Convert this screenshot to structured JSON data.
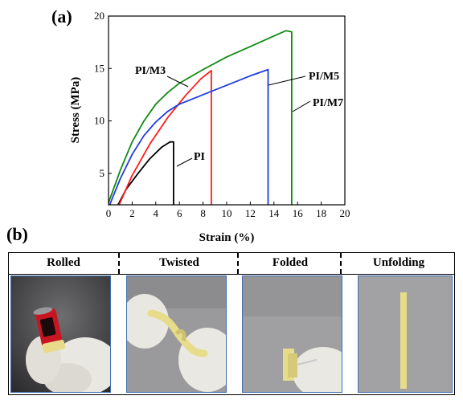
{
  "panel_a": "(a)",
  "panel_b": "(b)",
  "chart_data": {
    "type": "line",
    "title": "",
    "xlabel": "Strain (%)",
    "ylabel": "Stress (MPa)",
    "xlim": [
      0,
      20
    ],
    "ylim": [
      2,
      20
    ],
    "xticks": [
      0,
      2,
      4,
      6,
      8,
      10,
      12,
      14,
      16,
      18,
      20
    ],
    "yticks": [
      5,
      10,
      15,
      20
    ],
    "grid": false,
    "series": [
      {
        "name": "PI",
        "color": "#000000",
        "points": [
          [
            0.8,
            2.0
          ],
          [
            1.5,
            3.5
          ],
          [
            2.5,
            5.0
          ],
          [
            3.5,
            6.4
          ],
          [
            4.5,
            7.5
          ],
          [
            5.2,
            8.0
          ],
          [
            5.5,
            8.0
          ],
          [
            5.5,
            2.0
          ]
        ]
      },
      {
        "name": "PI/M3",
        "color": "#ff1a1a",
        "points": [
          [
            0.9,
            2.0
          ],
          [
            2.0,
            4.8
          ],
          [
            3.5,
            7.8
          ],
          [
            5.0,
            10.3
          ],
          [
            6.5,
            12.4
          ],
          [
            7.8,
            14.0
          ],
          [
            8.7,
            14.8
          ],
          [
            8.7,
            2.0
          ]
        ]
      },
      {
        "name": "PI/M5",
        "color": "#1f3de0",
        "points": [
          [
            0.1,
            2.0
          ],
          [
            1.0,
            4.5
          ],
          [
            2.0,
            6.8
          ],
          [
            3.0,
            8.6
          ],
          [
            4.0,
            9.9
          ],
          [
            5.0,
            10.9
          ],
          [
            6.0,
            11.6
          ],
          [
            8.0,
            12.5
          ],
          [
            10.0,
            13.4
          ],
          [
            12.0,
            14.3
          ],
          [
            13.5,
            14.9
          ],
          [
            13.5,
            2.0
          ]
        ]
      },
      {
        "name": "PI/M7",
        "color": "#128a12",
        "points": [
          [
            0.0,
            2.2
          ],
          [
            1.0,
            5.3
          ],
          [
            2.0,
            8.0
          ],
          [
            3.0,
            10.0
          ],
          [
            4.0,
            11.6
          ],
          [
            5.0,
            12.7
          ],
          [
            6.0,
            13.6
          ],
          [
            8.0,
            14.9
          ],
          [
            10.0,
            16.1
          ],
          [
            12.0,
            17.1
          ],
          [
            14.0,
            18.1
          ],
          [
            15.0,
            18.6
          ],
          [
            15.5,
            18.5
          ],
          [
            15.5,
            2.0
          ]
        ]
      }
    ],
    "annotations": [
      {
        "text": "PI/M3",
        "series": "PI/M3"
      },
      {
        "text": "PI",
        "series": "PI"
      },
      {
        "text": "PI/M5",
        "series": "PI/M5"
      },
      {
        "text": "PI/M7",
        "series": "PI/M7"
      }
    ]
  },
  "photos": [
    {
      "label": "Rolled",
      "icon": "rolled-film-photo"
    },
    {
      "label": "Twisted",
      "icon": "twisted-film-photo"
    },
    {
      "label": "Folded",
      "icon": "folded-film-photo"
    },
    {
      "label": "Unfolding",
      "icon": "unfolded-film-photo"
    }
  ]
}
